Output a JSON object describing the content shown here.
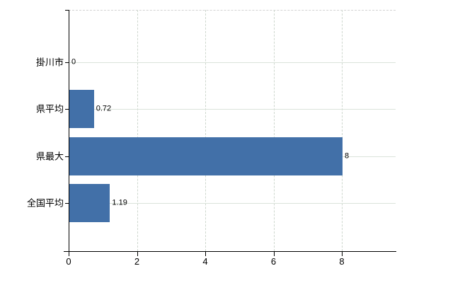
{
  "chart_data": {
    "type": "bar",
    "orientation": "horizontal",
    "title": "",
    "xlabel": "",
    "ylabel": "",
    "categories": [
      "掛川市",
      "県平均",
      "県最大",
      "全国平均"
    ],
    "values": [
      0,
      0.72,
      8,
      1.19
    ],
    "value_labels": [
      "0",
      "0.72",
      "8",
      "1.19"
    ],
    "xticks": [
      0,
      2,
      4,
      6,
      8
    ],
    "xtick_labels": [
      "0",
      "2",
      "4",
      "6",
      "8"
    ],
    "xlim": [
      0,
      9.6
    ],
    "grid": true,
    "legend": false,
    "colors": {
      "bar": "#4270a8",
      "h_gridline": "#dae3da",
      "v_gridline": "#ced7ce",
      "plot_top_border": "#d3d3d3",
      "axis": "#000000",
      "text": "#000000"
    }
  }
}
